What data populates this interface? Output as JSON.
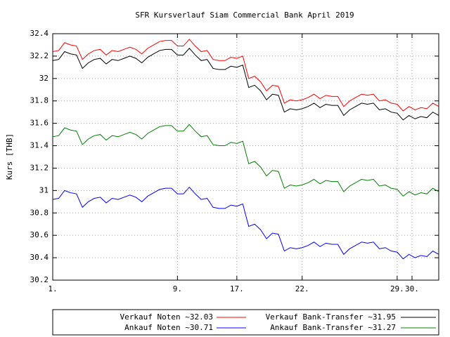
{
  "chart_data": {
    "type": "line",
    "title": "SFR Kursverlauf Siam Commercial Bank April 2019",
    "y_label": "Kurs [THB]",
    "xlim": [
      0,
      65
    ],
    "xticks": [
      {
        "value": 0,
        "label": "1."
      },
      {
        "value": 21,
        "label": "9."
      },
      {
        "value": 31,
        "label": "17."
      },
      {
        "value": 42,
        "label": "22."
      },
      {
        "value": 58,
        "label": "29."
      },
      {
        "value": 60.5,
        "label": "30."
      }
    ],
    "ylim": [
      30.2,
      32.4
    ],
    "yticks": [
      30.2,
      30.4,
      30.6,
      30.8,
      31,
      31.2,
      31.4,
      31.6,
      31.8,
      32,
      32.2,
      32.4
    ],
    "grid": true,
    "legend": "bottom",
    "series": [
      {
        "name": "Verkauf Noten ~32.03",
        "color": "#ff0000",
        "values": [
          32.24,
          32.25,
          32.32,
          32.3,
          32.29,
          32.17,
          32.22,
          32.25,
          32.26,
          32.21,
          32.25,
          32.24,
          32.26,
          32.28,
          32.26,
          32.22,
          32.27,
          32.3,
          32.33,
          32.34,
          32.34,
          32.29,
          32.29,
          32.35,
          32.29,
          32.24,
          32.25,
          32.17,
          32.16,
          32.16,
          32.19,
          32.18,
          32.2,
          32.0,
          32.02,
          31.97,
          31.89,
          31.94,
          31.93,
          31.78,
          31.81,
          31.8,
          31.81,
          31.83,
          31.86,
          31.82,
          31.85,
          31.84,
          31.84,
          31.75,
          31.8,
          31.83,
          31.86,
          31.85,
          31.86,
          31.8,
          31.81,
          31.78,
          31.77,
          31.71,
          31.75,
          31.72,
          31.74,
          31.73,
          31.78,
          31.75
        ]
      },
      {
        "name": "Verkauf Bank-Transfer ~31.95",
        "color": "#000000",
        "values": [
          32.16,
          32.17,
          32.24,
          32.22,
          32.21,
          32.09,
          32.14,
          32.17,
          32.18,
          32.13,
          32.17,
          32.16,
          32.18,
          32.2,
          32.18,
          32.14,
          32.19,
          32.22,
          32.25,
          32.26,
          32.26,
          32.21,
          32.21,
          32.27,
          32.21,
          32.16,
          32.17,
          32.09,
          32.08,
          32.08,
          32.11,
          32.1,
          32.12,
          31.92,
          31.94,
          31.89,
          31.81,
          31.86,
          31.85,
          31.7,
          31.73,
          31.72,
          31.73,
          31.75,
          31.78,
          31.74,
          31.77,
          31.76,
          31.76,
          31.67,
          31.72,
          31.75,
          31.78,
          31.77,
          31.78,
          31.72,
          31.73,
          31.7,
          31.69,
          31.63,
          31.67,
          31.64,
          31.66,
          31.65,
          31.7,
          31.67
        ]
      },
      {
        "name": "Ankauf Noten ~30.71",
        "color": "#0000ff",
        "values": [
          30.92,
          30.93,
          31.0,
          30.98,
          30.97,
          30.85,
          30.9,
          30.93,
          30.94,
          30.89,
          30.93,
          30.92,
          30.94,
          30.96,
          30.94,
          30.9,
          30.95,
          30.98,
          31.01,
          31.02,
          31.02,
          30.97,
          30.97,
          31.03,
          30.97,
          30.92,
          30.93,
          30.85,
          30.84,
          30.84,
          30.87,
          30.86,
          30.88,
          30.68,
          30.7,
          30.65,
          30.57,
          30.62,
          30.61,
          30.46,
          30.49,
          30.48,
          30.49,
          30.51,
          30.54,
          30.5,
          30.53,
          30.52,
          30.52,
          30.43,
          30.48,
          30.51,
          30.54,
          30.53,
          30.54,
          30.48,
          30.49,
          30.46,
          30.45,
          30.39,
          30.43,
          30.4,
          30.42,
          30.41,
          30.46,
          30.43
        ]
      },
      {
        "name": "Ankauf Bank-Transfer ~31.27",
        "color": "#008000",
        "values": [
          31.48,
          31.49,
          31.56,
          31.54,
          31.53,
          31.41,
          31.46,
          31.49,
          31.5,
          31.45,
          31.49,
          31.48,
          31.5,
          31.52,
          31.5,
          31.46,
          31.51,
          31.54,
          31.57,
          31.58,
          31.58,
          31.53,
          31.53,
          31.59,
          31.53,
          31.48,
          31.49,
          31.41,
          31.4,
          31.4,
          31.43,
          31.42,
          31.44,
          31.24,
          31.26,
          31.21,
          31.13,
          31.18,
          31.17,
          31.02,
          31.05,
          31.04,
          31.05,
          31.07,
          31.1,
          31.06,
          31.09,
          31.08,
          31.08,
          30.99,
          31.04,
          31.07,
          31.1,
          31.09,
          31.1,
          31.04,
          31.05,
          31.02,
          31.01,
          30.95,
          30.99,
          30.96,
          30.98,
          30.97,
          31.02,
          30.99
        ]
      }
    ]
  }
}
